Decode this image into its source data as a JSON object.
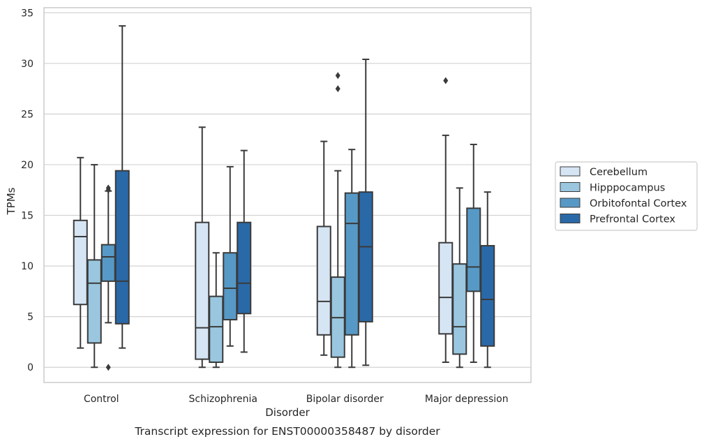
{
  "chart_data": {
    "type": "box",
    "caption": "Transcript expression for ENST00000358487 by disorder",
    "xlabel": "Disorder",
    "ylabel": "TPMs",
    "ylim": [
      -1.5,
      35.5
    ],
    "yticks": [
      0,
      5,
      10,
      15,
      20,
      25,
      30,
      35
    ],
    "ytick_labels": [
      "0",
      "5",
      "10",
      "15",
      "20",
      "25",
      "30",
      "35"
    ],
    "grid": true,
    "legend_position": "right, outside plot",
    "categories": [
      "Control",
      "Schizophrenia",
      "Bipolar disorder",
      "Major depression"
    ],
    "series": [
      {
        "name": "Cerebellum",
        "color": "#d6e5f4",
        "boxes": [
          {
            "whisker_low": 1.9,
            "q1": 6.2,
            "median": 12.9,
            "q3": 14.5,
            "whisker_high": 20.7,
            "outliers": []
          },
          {
            "whisker_low": 0.0,
            "q1": 0.8,
            "median": 3.9,
            "q3": 14.3,
            "whisker_high": 23.7,
            "outliers": []
          },
          {
            "whisker_low": 1.2,
            "q1": 3.2,
            "median": 6.5,
            "q3": 13.9,
            "whisker_high": 22.3,
            "outliers": []
          },
          {
            "whisker_low": 0.5,
            "q1": 3.3,
            "median": 6.9,
            "q3": 12.3,
            "whisker_high": 22.9,
            "outliers": [
              28.3
            ]
          }
        ]
      },
      {
        "name": "Hipppocampus",
        "color": "#9ac7df",
        "boxes": [
          {
            "whisker_low": 0.0,
            "q1": 2.4,
            "median": 8.3,
            "q3": 10.6,
            "whisker_high": 20.0,
            "outliers": []
          },
          {
            "whisker_low": 0.0,
            "q1": 0.5,
            "median": 4.0,
            "q3": 7.0,
            "whisker_high": 11.3,
            "outliers": []
          },
          {
            "whisker_low": 0.0,
            "q1": 1.0,
            "median": 4.9,
            "q3": 8.9,
            "whisker_high": 19.4,
            "outliers": [
              27.5,
              28.8
            ]
          },
          {
            "whisker_low": 0.0,
            "q1": 1.3,
            "median": 4.0,
            "q3": 10.2,
            "whisker_high": 17.7,
            "outliers": []
          }
        ]
      },
      {
        "name": "Orbitofontal Cortex",
        "color": "#5799c6",
        "boxes": [
          {
            "whisker_low": 4.4,
            "q1": 8.5,
            "median": 10.9,
            "q3": 12.1,
            "whisker_high": 17.4,
            "outliers": [
              0.0,
              17.5,
              17.7
            ]
          },
          {
            "whisker_low": 2.1,
            "q1": 4.7,
            "median": 7.8,
            "q3": 11.3,
            "whisker_high": 19.8,
            "outliers": []
          },
          {
            "whisker_low": 0.0,
            "q1": 3.2,
            "median": 14.2,
            "q3": 17.2,
            "whisker_high": 21.5,
            "outliers": []
          },
          {
            "whisker_low": 0.5,
            "q1": 7.5,
            "median": 9.9,
            "q3": 15.7,
            "whisker_high": 22.0,
            "outliers": []
          }
        ]
      },
      {
        "name": "Prefrontal Cortex",
        "color": "#2a69a8",
        "boxes": [
          {
            "whisker_low": 1.9,
            "q1": 4.3,
            "median": 8.5,
            "q3": 19.4,
            "whisker_high": 33.7,
            "outliers": []
          },
          {
            "whisker_low": 1.5,
            "q1": 5.3,
            "median": 8.3,
            "q3": 14.3,
            "whisker_high": 21.4,
            "outliers": []
          },
          {
            "whisker_low": 0.2,
            "q1": 4.5,
            "median": 11.9,
            "q3": 17.3,
            "whisker_high": 30.4,
            "outliers": []
          },
          {
            "whisker_low": 0.0,
            "q1": 2.1,
            "median": 6.7,
            "q3": 12.0,
            "whisker_high": 17.3,
            "outliers": []
          }
        ]
      }
    ],
    "colors": {
      "grid": "#d3d3d3",
      "axes_edge": "#cccccc",
      "box_edge": "#3a3a3a",
      "legend_border": "#cccccc"
    }
  }
}
